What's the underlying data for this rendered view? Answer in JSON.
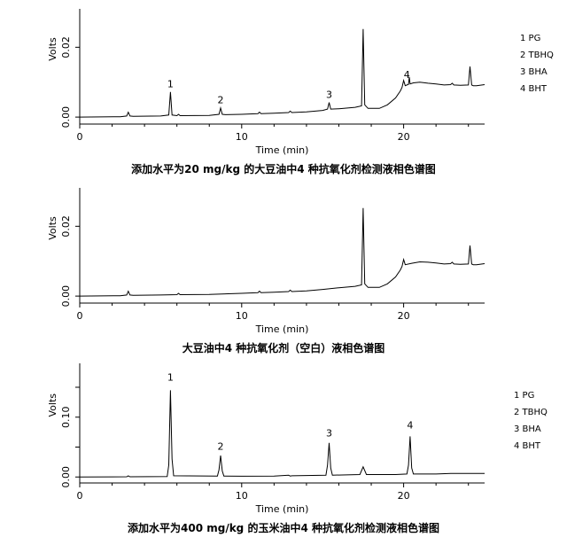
{
  "chart_data": [
    {
      "type": "line",
      "title": "添加水平为20 mg/kg 的大豆油中4 种抗氧化剂检测液相色谱图",
      "xlabel": "Time (min)",
      "ylabel": "Volts",
      "xlim": [
        0,
        25
      ],
      "ylim": [
        -0.002,
        0.031
      ],
      "xticks": [
        0,
        10,
        20
      ],
      "xtick_labels": [
        "0",
        "10",
        "20"
      ],
      "yticks": [
        0.0,
        0.02
      ],
      "ytick_labels": [
        "0.00",
        "0.02"
      ],
      "legend": [
        "1 PG",
        "2 TBHQ",
        "3 BHA",
        "4 BHT"
      ],
      "legend_position": "right",
      "peak_labels": [
        {
          "label": "1",
          "x": 5.6,
          "y": 0.0075
        },
        {
          "label": "2",
          "x": 8.7,
          "y": 0.0029
        },
        {
          "label": "3",
          "x": 15.4,
          "y": 0.0045
        },
        {
          "label": "4",
          "x": 20.2,
          "y": 0.0102
        }
      ],
      "series": [
        {
          "x": [
            0,
            2.5,
            2.9,
            3.0,
            3.1,
            3.3,
            5.0,
            5.5,
            5.6,
            5.7,
            6.0,
            6.1,
            6.2,
            8.0,
            8.6,
            8.7,
            8.8,
            9.0,
            10,
            11.0,
            11.1,
            11.2,
            12,
            12.9,
            13.0,
            13.1,
            14,
            15.0,
            15.3,
            15.4,
            15.5,
            16.0,
            17.0,
            17.4,
            17.5,
            17.6,
            17.8,
            18.5,
            19.0,
            19.5,
            19.8,
            19.9,
            20.0,
            20.1,
            20.3,
            20.35,
            20.4,
            20.6,
            21.0,
            21.5,
            22.0,
            22.5,
            22.9,
            23.0,
            23.1,
            23.5,
            24.0,
            24.1,
            24.2,
            24.3,
            24.5,
            25.0
          ],
          "y": [
            0.0,
            0.0001,
            0.0003,
            0.0014,
            0.0003,
            0.0002,
            0.0003,
            0.0006,
            0.0072,
            0.0006,
            0.0004,
            0.0008,
            0.0004,
            0.0005,
            0.0008,
            0.0026,
            0.0008,
            0.0007,
            0.0008,
            0.001,
            0.0014,
            0.001,
            0.0011,
            0.0013,
            0.0017,
            0.0013,
            0.0015,
            0.0019,
            0.0023,
            0.0042,
            0.0023,
            0.0024,
            0.0028,
            0.0032,
            0.0252,
            0.0035,
            0.0025,
            0.0025,
            0.0035,
            0.0055,
            0.0075,
            0.0085,
            0.0105,
            0.009,
            0.0094,
            0.0115,
            0.0095,
            0.0098,
            0.01,
            0.0097,
            0.0095,
            0.0092,
            0.0093,
            0.0097,
            0.0092,
            0.0091,
            0.0092,
            0.0145,
            0.0092,
            0.009,
            0.009,
            0.0093
          ]
        }
      ]
    },
    {
      "type": "line",
      "title": "大豆油中4 种抗氧化剂（空白）液相色谱图",
      "xlabel": "Time (min)",
      "ylabel": "Volts",
      "xlim": [
        0,
        25
      ],
      "ylim": [
        -0.002,
        0.031
      ],
      "xticks": [
        0,
        10,
        20
      ],
      "xtick_labels": [
        "0",
        "10",
        "20"
      ],
      "yticks": [
        0.0,
        0.02
      ],
      "ytick_labels": [
        "0.00",
        "0.02"
      ],
      "series": [
        {
          "x": [
            0,
            2.5,
            2.9,
            3.0,
            3.1,
            3.3,
            5.0,
            6.0,
            6.1,
            6.2,
            8.0,
            10,
            11.0,
            11.1,
            11.2,
            12,
            12.9,
            13.0,
            13.1,
            14,
            15.0,
            16.0,
            17.0,
            17.4,
            17.5,
            17.6,
            17.8,
            18.5,
            19.0,
            19.5,
            19.8,
            19.9,
            20.0,
            20.1,
            20.5,
            21.0,
            21.5,
            22.0,
            22.5,
            22.9,
            23.0,
            23.1,
            23.5,
            24.0,
            24.1,
            24.2,
            24.3,
            24.5,
            25.0
          ],
          "y": [
            0.0,
            0.0001,
            0.0003,
            0.0014,
            0.0003,
            0.0002,
            0.0003,
            0.0004,
            0.0008,
            0.0004,
            0.0005,
            0.0008,
            0.001,
            0.0014,
            0.001,
            0.0011,
            0.0013,
            0.0017,
            0.0013,
            0.0015,
            0.0019,
            0.0024,
            0.0028,
            0.0032,
            0.0252,
            0.0035,
            0.0025,
            0.0025,
            0.0035,
            0.0055,
            0.0075,
            0.0085,
            0.0105,
            0.009,
            0.0094,
            0.0098,
            0.0097,
            0.0095,
            0.0092,
            0.0093,
            0.0097,
            0.0092,
            0.0091,
            0.0092,
            0.0145,
            0.0092,
            0.009,
            0.009,
            0.0093
          ]
        }
      ]
    },
    {
      "type": "line",
      "title": "添加水平为400 mg/kg 的玉米油中4 种抗氧化剂检测液相色谱图",
      "xlabel": "Time (min)",
      "ylabel": "Volts",
      "xlim": [
        0,
        25
      ],
      "ylim": [
        -0.01,
        0.19
      ],
      "xticks": [
        0,
        10,
        20
      ],
      "xtick_labels": [
        "0",
        "10",
        "20"
      ],
      "yticks": [
        0.0,
        0.05,
        0.1,
        0.15
      ],
      "ytick_labels": [
        "0.00",
        "",
        "0.10",
        ""
      ],
      "legend": [
        "1 PG",
        "2 TBHQ",
        "3 BHA",
        "4 BHT"
      ],
      "legend_position": "right",
      "peak_labels": [
        {
          "label": "1",
          "x": 5.6,
          "y": 0.155
        },
        {
          "label": "2",
          "x": 8.7,
          "y": 0.04
        },
        {
          "label": "3",
          "x": 15.4,
          "y": 0.062
        },
        {
          "label": "4",
          "x": 20.4,
          "y": 0.075
        }
      ],
      "series": [
        {
          "x": [
            0,
            2.9,
            3.0,
            3.1,
            5.4,
            5.5,
            5.6,
            5.7,
            5.8,
            8.5,
            8.6,
            8.7,
            8.8,
            8.9,
            10,
            12,
            12.9,
            13.0,
            13.1,
            15.2,
            15.3,
            15.4,
            15.5,
            15.6,
            17.3,
            17.5,
            17.7,
            19.5,
            20.2,
            20.3,
            20.4,
            20.5,
            20.6,
            22,
            23,
            24,
            25
          ],
          "y": [
            0.0,
            0.0003,
            0.002,
            0.0003,
            0.0006,
            0.02,
            0.145,
            0.03,
            0.002,
            0.0015,
            0.012,
            0.036,
            0.01,
            0.0015,
            0.0012,
            0.0015,
            0.003,
            0.0015,
            0.002,
            0.003,
            0.02,
            0.057,
            0.015,
            0.003,
            0.004,
            0.017,
            0.004,
            0.004,
            0.005,
            0.02,
            0.068,
            0.015,
            0.005,
            0.005,
            0.006,
            0.006,
            0.006
          ]
        }
      ]
    }
  ]
}
